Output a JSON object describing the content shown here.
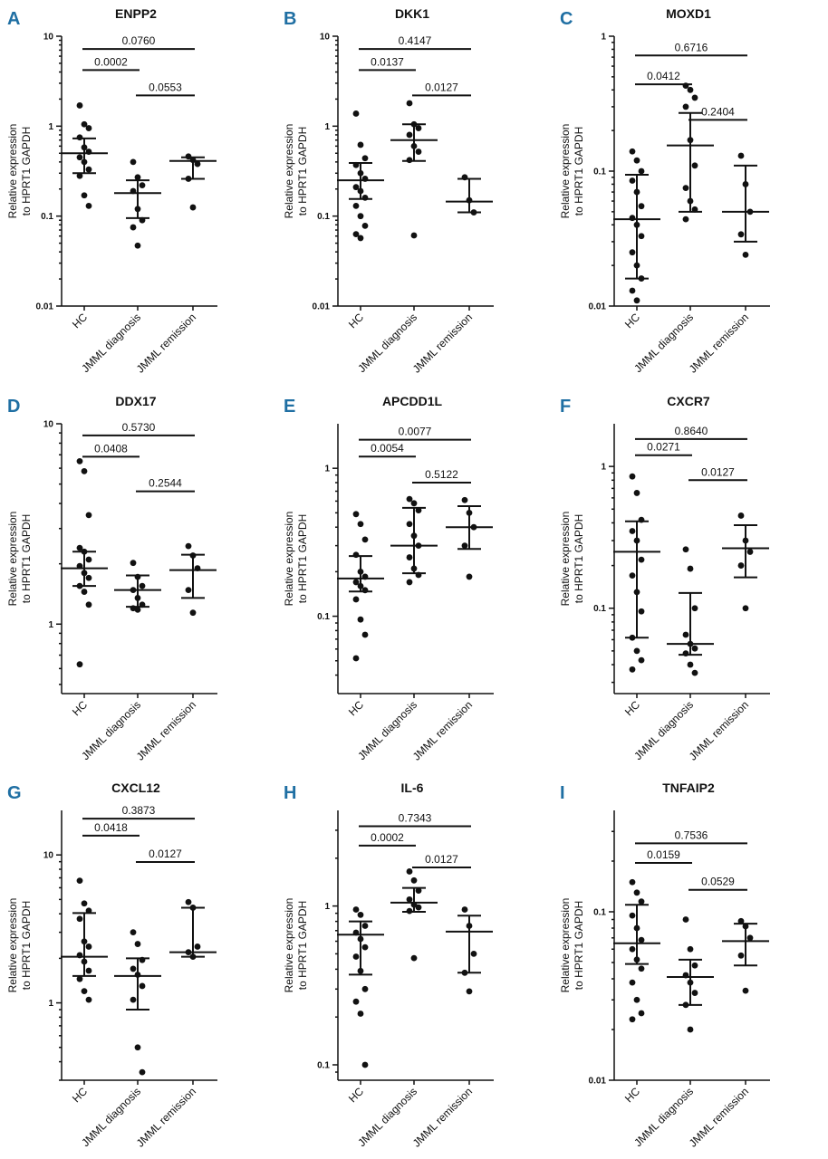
{
  "figure": {
    "categories": [
      "HC",
      "JMML diagnosis",
      "JMML remission"
    ],
    "y_label_line1": "Relative expression",
    "y_label_line2": "to HPRT1 GAPDH",
    "colors": {
      "letter": "#1f6fa3",
      "ink": "#111111"
    }
  },
  "chart_data": [
    {
      "letter": "A",
      "title": "ENPP2",
      "type": "scatter",
      "yscale": "log",
      "ylim": [
        0.01,
        10
      ],
      "yticks": [
        {
          "v": 10,
          "label": "10"
        },
        {
          "v": 1,
          "label": "1"
        },
        {
          "v": 0.1,
          "label": "0.1"
        },
        {
          "v": 0.01,
          "label": "0.01"
        }
      ],
      "groups": [
        {
          "name": "HC",
          "median": 0.5,
          "q1": 0.3,
          "q3": 0.73,
          "points": [
            1.7,
            1.05,
            0.95,
            0.75,
            0.58,
            0.52,
            0.45,
            0.4,
            0.33,
            0.28,
            0.17,
            0.13
          ]
        },
        {
          "name": "JMML diagnosis",
          "median": 0.18,
          "q1": 0.095,
          "q3": 0.25,
          "points": [
            0.4,
            0.27,
            0.22,
            0.19,
            0.12,
            0.09,
            0.075,
            0.047
          ]
        },
        {
          "name": "JMML remission",
          "median": 0.41,
          "q1": 0.26,
          "q3": 0.45,
          "points": [
            0.46,
            0.42,
            0.38,
            0.26,
            0.125
          ]
        }
      ],
      "comparisons": [
        {
          "from": 0,
          "to": 1,
          "label": "0.0002",
          "y": 4.2
        },
        {
          "from": 0,
          "to": 2,
          "label": "0.0760",
          "y": 7.2
        },
        {
          "from": 1,
          "to": 2,
          "label": "0.0553",
          "y": 2.2
        }
      ]
    },
    {
      "letter": "B",
      "title": "DKK1",
      "type": "scatter",
      "yscale": "log",
      "ylim": [
        0.01,
        10
      ],
      "yticks": [
        {
          "v": 10,
          "label": "10"
        },
        {
          "v": 1,
          "label": "1"
        },
        {
          "v": 0.1,
          "label": "0.1"
        },
        {
          "v": 0.01,
          "label": "0.01"
        }
      ],
      "groups": [
        {
          "name": "HC",
          "median": 0.25,
          "q1": 0.155,
          "q3": 0.39,
          "points": [
            1.38,
            0.62,
            0.44,
            0.37,
            0.3,
            0.26,
            0.21,
            0.19,
            0.16,
            0.13,
            0.1,
            0.078,
            0.063,
            0.057
          ]
        },
        {
          "name": "JMML diagnosis",
          "median": 0.7,
          "q1": 0.41,
          "q3": 1.05,
          "points": [
            1.8,
            1.05,
            0.95,
            0.8,
            0.6,
            0.52,
            0.42,
            0.061
          ]
        },
        {
          "name": "JMML remission",
          "median": 0.145,
          "q1": 0.11,
          "q3": 0.26,
          "points": [
            0.27,
            0.15,
            0.11
          ]
        }
      ],
      "comparisons": [
        {
          "from": 0,
          "to": 1,
          "label": "0.0137",
          "y": 4.2
        },
        {
          "from": 0,
          "to": 2,
          "label": "0.4147",
          "y": 7.2
        },
        {
          "from": 1,
          "to": 2,
          "label": "0.0127",
          "y": 2.2
        }
      ]
    },
    {
      "letter": "C",
      "title": "MOXD1",
      "type": "scatter",
      "yscale": "log",
      "ylim": [
        0.01,
        1
      ],
      "yticks": [
        {
          "v": 1,
          "label": "1"
        },
        {
          "v": 0.1,
          "label": "0.1"
        },
        {
          "v": 0.01,
          "label": "0.01"
        }
      ],
      "groups": [
        {
          "name": "HC",
          "median": 0.044,
          "q1": 0.016,
          "q3": 0.094,
          "points": [
            0.14,
            0.12,
            0.1,
            0.085,
            0.07,
            0.055,
            0.045,
            0.04,
            0.033,
            0.025,
            0.02,
            0.016,
            0.013,
            0.011
          ]
        },
        {
          "name": "JMML diagnosis",
          "median": 0.155,
          "q1": 0.05,
          "q3": 0.27,
          "points": [
            0.43,
            0.4,
            0.35,
            0.3,
            0.17,
            0.11,
            0.075,
            0.06,
            0.052,
            0.044
          ]
        },
        {
          "name": "JMML remission",
          "median": 0.05,
          "q1": 0.03,
          "q3": 0.11,
          "points": [
            0.13,
            0.08,
            0.05,
            0.034,
            0.024
          ]
        }
      ],
      "comparisons": [
        {
          "from": 0,
          "to": 1,
          "label": "0.0412",
          "y": 0.44
        },
        {
          "from": 0,
          "to": 2,
          "label": "0.6716",
          "y": 0.72
        },
        {
          "from": 1,
          "to": 2,
          "label": "0.2404",
          "y": 0.24
        }
      ]
    },
    {
      "letter": "D",
      "title": "DDX17",
      "type": "scatter",
      "yscale": "log",
      "ylim": [
        0.45,
        10
      ],
      "yticks": [
        {
          "v": 10,
          "label": "10"
        },
        {
          "v": 1,
          "label": "1"
        }
      ],
      "groups": [
        {
          "name": "HC",
          "median": 1.9,
          "q1": 1.55,
          "q3": 2.3,
          "points": [
            6.5,
            5.8,
            3.5,
            2.4,
            2.3,
            2.1,
            1.95,
            1.8,
            1.7,
            1.55,
            1.45,
            1.25,
            0.63
          ]
        },
        {
          "name": "JMML diagnosis",
          "median": 1.48,
          "q1": 1.22,
          "q3": 1.75,
          "points": [
            2.02,
            1.72,
            1.55,
            1.48,
            1.35,
            1.25,
            1.2,
            1.18
          ]
        },
        {
          "name": "JMML remission",
          "median": 1.86,
          "q1": 1.35,
          "q3": 2.22,
          "points": [
            2.45,
            2.2,
            1.9,
            1.48,
            1.14
          ]
        }
      ],
      "comparisons": [
        {
          "from": 0,
          "to": 1,
          "label": "0.0408",
          "y": 6.85
        },
        {
          "from": 0,
          "to": 2,
          "label": "0.5730",
          "y": 8.75
        },
        {
          "from": 1,
          "to": 2,
          "label": "0.2544",
          "y": 4.6
        }
      ]
    },
    {
      "letter": "E",
      "title": "APCDD1L",
      "type": "scatter",
      "yscale": "log",
      "ylim": [
        0.03,
        2
      ],
      "yticks": [
        {
          "v": 1,
          "label": "1"
        },
        {
          "v": 0.1,
          "label": "0.1"
        }
      ],
      "groups": [
        {
          "name": "HC",
          "median": 0.18,
          "q1": 0.147,
          "q3": 0.255,
          "points": [
            0.49,
            0.42,
            0.33,
            0.26,
            0.2,
            0.185,
            0.17,
            0.16,
            0.15,
            0.13,
            0.095,
            0.075,
            0.052
          ]
        },
        {
          "name": "JMML diagnosis",
          "median": 0.3,
          "q1": 0.195,
          "q3": 0.54,
          "points": [
            0.62,
            0.58,
            0.52,
            0.42,
            0.35,
            0.3,
            0.25,
            0.21,
            0.19,
            0.17
          ]
        },
        {
          "name": "JMML remission",
          "median": 0.4,
          "q1": 0.285,
          "q3": 0.555,
          "points": [
            0.61,
            0.5,
            0.4,
            0.3,
            0.185
          ]
        }
      ],
      "comparisons": [
        {
          "from": 0,
          "to": 1,
          "label": "0.0054",
          "y": 1.2
        },
        {
          "from": 0,
          "to": 2,
          "label": "0.0077",
          "y": 1.56
        },
        {
          "from": 1,
          "to": 2,
          "label": "0.5122",
          "y": 0.8
        }
      ]
    },
    {
      "letter": "F",
      "title": "CXCR7",
      "type": "scatter",
      "yscale": "log",
      "ylim": [
        0.025,
        2
      ],
      "yticks": [
        {
          "v": 1,
          "label": "1"
        },
        {
          "v": 0.1,
          "label": "0.1"
        }
      ],
      "groups": [
        {
          "name": "HC",
          "median": 0.25,
          "q1": 0.062,
          "q3": 0.41,
          "points": [
            0.85,
            0.65,
            0.42,
            0.35,
            0.3,
            0.22,
            0.17,
            0.13,
            0.095,
            0.062,
            0.05,
            0.043,
            0.037
          ]
        },
        {
          "name": "JMML diagnosis",
          "median": 0.056,
          "q1": 0.047,
          "q3": 0.128,
          "points": [
            0.26,
            0.19,
            0.1,
            0.065,
            0.056,
            0.052,
            0.048,
            0.04,
            0.035
          ]
        },
        {
          "name": "JMML remission",
          "median": 0.265,
          "q1": 0.165,
          "q3": 0.385,
          "points": [
            0.45,
            0.3,
            0.25,
            0.2,
            0.1
          ]
        }
      ],
      "comparisons": [
        {
          "from": 0,
          "to": 1,
          "label": "0.0271",
          "y": 1.2
        },
        {
          "from": 0,
          "to": 2,
          "label": "0.8640",
          "y": 1.56
        },
        {
          "from": 1,
          "to": 2,
          "label": "0.0127",
          "y": 0.8
        }
      ]
    },
    {
      "letter": "G",
      "title": "CXCL12",
      "type": "scatter",
      "yscale": "log",
      "ylim": [
        0.3,
        20
      ],
      "yticks": [
        {
          "v": 10,
          "label": "10"
        },
        {
          "v": 1,
          "label": "1"
        }
      ],
      "groups": [
        {
          "name": "HC",
          "median": 2.05,
          "q1": 1.52,
          "q3": 4.05,
          "points": [
            6.7,
            4.7,
            4.2,
            3.7,
            2.6,
            2.4,
            2.1,
            1.9,
            1.65,
            1.45,
            1.2,
            1.05
          ]
        },
        {
          "name": "JMML diagnosis",
          "median": 1.52,
          "q1": 0.9,
          "q3": 2.0,
          "points": [
            3.0,
            2.5,
            1.95,
            1.7,
            1.55,
            1.3,
            1.05,
            0.5,
            0.34
          ]
        },
        {
          "name": "JMML remission",
          "median": 2.2,
          "q1": 2.05,
          "q3": 4.4,
          "points": [
            4.8,
            4.4,
            2.4,
            2.2,
            2.05
          ]
        }
      ],
      "comparisons": [
        {
          "from": 0,
          "to": 1,
          "label": "0.0418",
          "y": 13.5
        },
        {
          "from": 0,
          "to": 2,
          "label": "0.3873",
          "y": 17.6
        },
        {
          "from": 1,
          "to": 2,
          "label": "0.0127",
          "y": 8.95
        }
      ]
    },
    {
      "letter": "H",
      "title": "IL-6",
      "type": "scatter",
      "yscale": "log",
      "ylim": [
        0.08,
        4
      ],
      "yticks": [
        {
          "v": 1,
          "label": "1"
        },
        {
          "v": 0.1,
          "label": "0.1"
        }
      ],
      "groups": [
        {
          "name": "HC",
          "median": 0.66,
          "q1": 0.37,
          "q3": 0.8,
          "points": [
            0.95,
            0.88,
            0.75,
            0.68,
            0.62,
            0.55,
            0.48,
            0.39,
            0.3,
            0.25,
            0.21,
            0.1
          ]
        },
        {
          "name": "JMML diagnosis",
          "median": 1.05,
          "q1": 0.92,
          "q3": 1.3,
          "points": [
            1.65,
            1.45,
            1.25,
            1.1,
            1.02,
            0.98,
            0.93,
            0.47
          ]
        },
        {
          "name": "JMML remission",
          "median": 0.69,
          "q1": 0.38,
          "q3": 0.87,
          "points": [
            0.95,
            0.75,
            0.5,
            0.38,
            0.29
          ]
        }
      ],
      "comparisons": [
        {
          "from": 0,
          "to": 1,
          "label": "0.0002",
          "y": 2.4
        },
        {
          "from": 0,
          "to": 2,
          "label": "0.7343",
          "y": 3.18
        },
        {
          "from": 1,
          "to": 2,
          "label": "0.0127",
          "y": 1.75
        }
      ]
    },
    {
      "letter": "I",
      "title": "TNFAIP2",
      "type": "scatter",
      "yscale": "log",
      "ylim": [
        0.01,
        0.4
      ],
      "yticks": [
        {
          "v": 0.1,
          "label": "0.1"
        },
        {
          "v": 0.01,
          "label": "0.01"
        }
      ],
      "groups": [
        {
          "name": "HC",
          "median": 0.065,
          "q1": 0.049,
          "q3": 0.11,
          "points": [
            0.15,
            0.13,
            0.115,
            0.095,
            0.08,
            0.068,
            0.06,
            0.052,
            0.046,
            0.038,
            0.03,
            0.025,
            0.023
          ]
        },
        {
          "name": "JMML diagnosis",
          "median": 0.041,
          "q1": 0.028,
          "q3": 0.052,
          "points": [
            0.09,
            0.06,
            0.048,
            0.042,
            0.038,
            0.033,
            0.028,
            0.02
          ]
        },
        {
          "name": "JMML remission",
          "median": 0.067,
          "q1": 0.048,
          "q3": 0.085,
          "points": [
            0.088,
            0.082,
            0.07,
            0.055,
            0.034
          ]
        }
      ],
      "comparisons": [
        {
          "from": 0,
          "to": 1,
          "label": "0.0159",
          "y": 0.195
        },
        {
          "from": 0,
          "to": 2,
          "label": "0.7536",
          "y": 0.255
        },
        {
          "from": 1,
          "to": 2,
          "label": "0.0529",
          "y": 0.135
        }
      ]
    }
  ]
}
